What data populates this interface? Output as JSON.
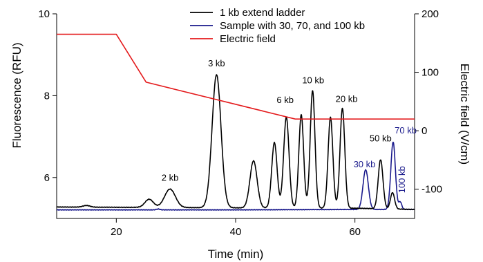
{
  "chart_data": {
    "type": "line",
    "xlabel": "Time (min)",
    "ylabel": "Fluorescence (RFU)",
    "y2label": "Electric field (V/cm)",
    "xlim": [
      10,
      70
    ],
    "ylim": [
      5.0,
      10.0
    ],
    "y2lim": [
      -150,
      200
    ],
    "xticks": [
      20,
      40,
      60
    ],
    "yticks": [
      6,
      8,
      10
    ],
    "y2ticks": [
      -100,
      0,
      100,
      200
    ],
    "legend_position": "top-center",
    "series": [
      {
        "name": "1 kb extend ladder",
        "axis": "left",
        "color": "#000000",
        "peaks": [
          {
            "t": 15.0,
            "h": 0.04,
            "w": 0.6
          },
          {
            "t": 25.5,
            "h": 0.2,
            "w": 0.7
          },
          {
            "t": 29.0,
            "h": 0.45,
            "w": 0.9
          },
          {
            "t": 36.8,
            "h": 3.25,
            "w": 0.75
          },
          {
            "t": 43.0,
            "h": 1.15,
            "w": 0.6
          },
          {
            "t": 46.5,
            "h": 1.6,
            "w": 0.45
          },
          {
            "t": 48.5,
            "h": 2.22,
            "w": 0.45
          },
          {
            "t": 51.0,
            "h": 2.28,
            "w": 0.4
          },
          {
            "t": 52.9,
            "h": 2.87,
            "w": 0.4
          },
          {
            "t": 55.9,
            "h": 2.22,
            "w": 0.4
          },
          {
            "t": 57.9,
            "h": 2.44,
            "w": 0.4
          },
          {
            "t": 64.3,
            "h": 1.2,
            "w": 0.4
          },
          {
            "t": 66.3,
            "h": 0.4,
            "w": 0.35
          }
        ],
        "baseline": [
          [
            10,
            5.28
          ],
          [
            40,
            5.26
          ],
          [
            60,
            5.25
          ],
          [
            70,
            5.22
          ]
        ]
      },
      {
        "name": "Sample with 30, 70, and 100 kb",
        "axis": "left",
        "color": "#1a1a8c",
        "peaks": [
          {
            "t": 27.0,
            "h": 0.02,
            "w": 0.3
          },
          {
            "t": 61.8,
            "h": 0.97,
            "w": 0.45
          },
          {
            "t": 66.4,
            "h": 1.65,
            "w": 0.38
          },
          {
            "t": 67.6,
            "h": 0.18,
            "w": 0.25
          }
        ],
        "baseline": [
          [
            10,
            5.21
          ],
          [
            40,
            5.21
          ],
          [
            60,
            5.22
          ],
          [
            70,
            5.22
          ]
        ]
      },
      {
        "name": "Electric field",
        "axis": "right",
        "color": "#e41a1c",
        "x": [
          10,
          20,
          25,
          50,
          70
        ],
        "y": [
          165,
          165,
          83,
          20,
          20
        ]
      }
    ],
    "annotations": [
      {
        "text": "2 kb",
        "x": 29.0,
        "y": 5.92,
        "color": "#000000"
      },
      {
        "text": "3 kb",
        "x": 36.8,
        "y": 8.72,
        "color": "#000000"
      },
      {
        "text": "6 kb",
        "x": 48.3,
        "y": 7.82,
        "color": "#000000"
      },
      {
        "text": "10 kb",
        "x": 53.0,
        "y": 8.3,
        "color": "#000000"
      },
      {
        "text": "20 kb",
        "x": 58.6,
        "y": 7.85,
        "color": "#000000"
      },
      {
        "text": "50 kb",
        "x": 64.3,
        "y": 6.88,
        "color": "#000000"
      },
      {
        "text": "30 kb",
        "x": 61.6,
        "y": 6.25,
        "color": "#1a1a8c"
      },
      {
        "text": "70 kb",
        "x": 68.5,
        "y": 7.08,
        "color": "#1a1a8c"
      },
      {
        "text": "100 kb",
        "x": 68.4,
        "y": 5.95,
        "color": "#1a1a8c",
        "rotate": -90
      }
    ]
  }
}
